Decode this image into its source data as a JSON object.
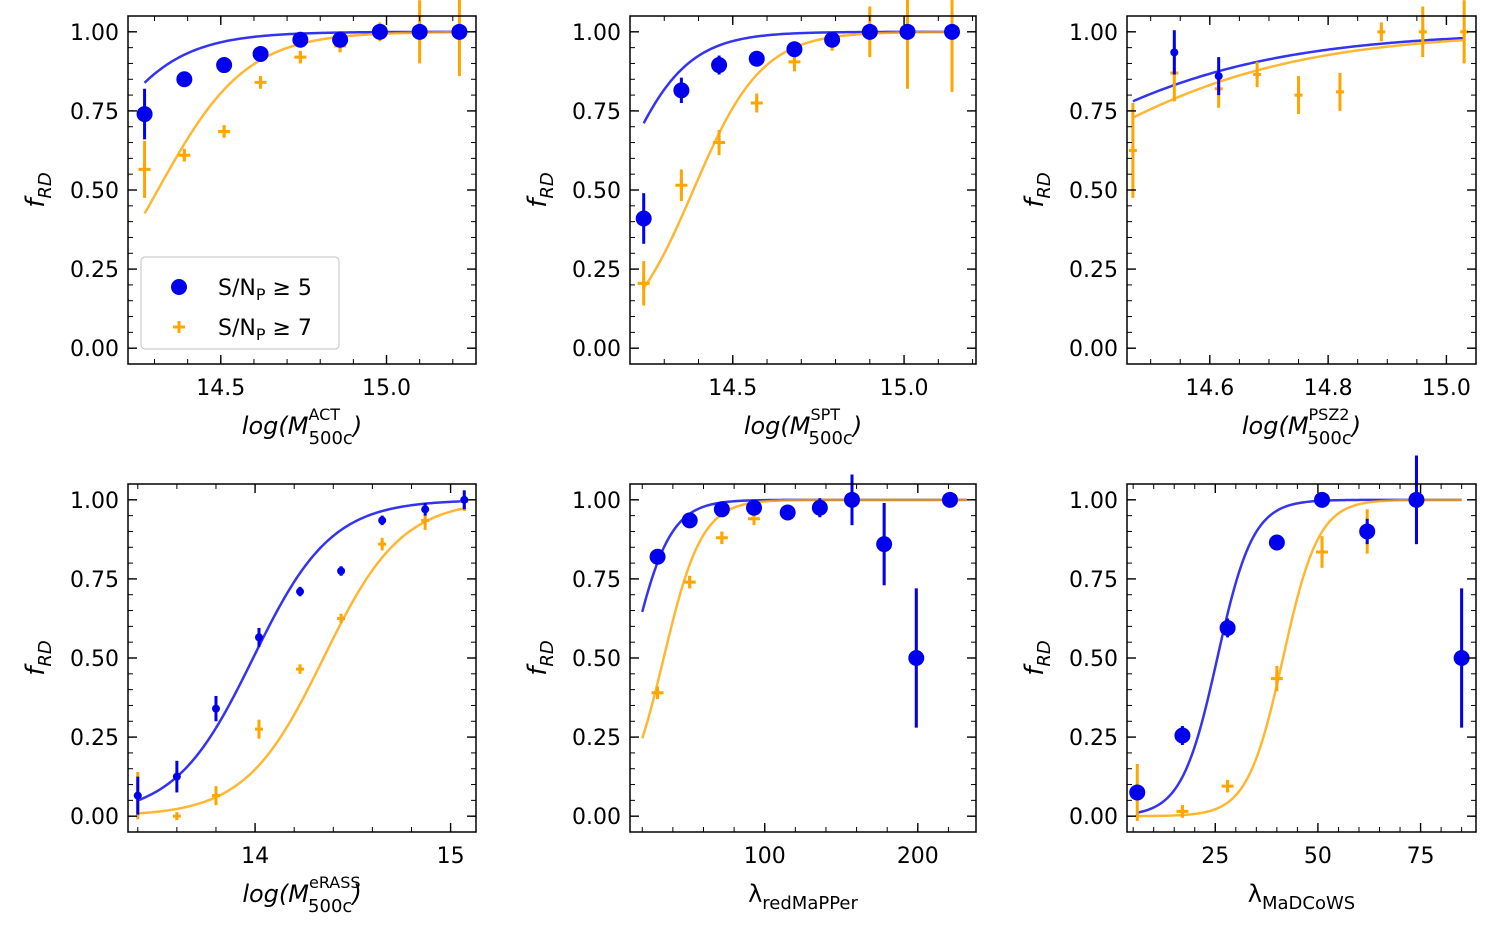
{
  "figure": {
    "legend": [
      {
        "label": "S/N",
        "sub": "P",
        "suffix": " ≥ 5",
        "marker": "circle",
        "color": "#0000ee"
      },
      {
        "label": "S/N",
        "sub": "P",
        "suffix": " ≥ 7",
        "marker": "plus",
        "color": "#ffa500"
      }
    ]
  },
  "chart_data": [
    {
      "type": "scatter",
      "title": "",
      "ylabel": "f_RD",
      "xlabel": {
        "main": "log(M",
        "sub": "500c",
        "sup": "ACT",
        "close": ")",
        "italic": true
      },
      "xlim": [
        14.22,
        15.27
      ],
      "ylim": [
        -0.05,
        1.05
      ],
      "xticks": [
        14.5,
        15.0
      ],
      "xtick_labels": [
        "14.5",
        "15.0"
      ],
      "yticks": [
        0.0,
        0.25,
        0.5,
        0.75,
        1.0
      ],
      "ytick_labels": [
        "0.00",
        "0.25",
        "0.50",
        "0.75",
        "1.00"
      ],
      "xminor": 0.1,
      "legend": true,
      "series": [
        {
          "name": "S/N_P ≥ 5",
          "color": "#0000ee",
          "marker": "circle",
          "size": 8,
          "x": [
            14.27,
            14.39,
            14.51,
            14.62,
            14.74,
            14.86,
            14.98,
            15.1,
            15.22
          ],
          "y": [
            0.74,
            0.85,
            0.895,
            0.93,
            0.975,
            0.975,
            1.0,
            1.0,
            1.0
          ],
          "err": [
            0.08,
            0.02,
            0.02,
            0.015,
            0.015,
            0.015,
            0.015,
            0.0,
            0.0
          ],
          "fit": {
            "type": "logistic",
            "x0": 14.05,
            "k": 7.5,
            "from": 14.27,
            "to": 15.22
          }
        },
        {
          "name": "S/N_P ≥ 7",
          "color": "#ffa500",
          "marker": "plus",
          "size": 6,
          "x": [
            14.27,
            14.39,
            14.51,
            14.62,
            14.74,
            14.86,
            14.98,
            15.1,
            15.22
          ],
          "y": [
            0.565,
            0.61,
            0.685,
            0.84,
            0.92,
            0.955,
            1.0,
            1.0,
            1.0
          ],
          "err": [
            0.09,
            0.02,
            0.02,
            0.02,
            0.02,
            0.02,
            0.03,
            0.1,
            0.14
          ],
          "fit": {
            "type": "logistic",
            "x0": 14.31,
            "k": 7.5,
            "from": 14.27,
            "to": 15.22
          }
        }
      ]
    },
    {
      "type": "scatter",
      "title": "",
      "ylabel": "f_RD",
      "xlabel": {
        "main": "log(M",
        "sub": "500c",
        "sup": "SPT",
        "close": ")",
        "italic": true
      },
      "xlim": [
        14.2,
        15.21
      ],
      "ylim": [
        -0.05,
        1.05
      ],
      "xticks": [
        14.5,
        15.0
      ],
      "xtick_labels": [
        "14.5",
        "15.0"
      ],
      "yticks": [
        0.0,
        0.25,
        0.5,
        0.75,
        1.0
      ],
      "ytick_labels": [
        "0.00",
        "0.25",
        "0.50",
        "0.75",
        "1.00"
      ],
      "xminor": 0.1,
      "legend": false,
      "series": [
        {
          "name": "S/N_P ≥ 5",
          "color": "#0000ee",
          "marker": "circle",
          "size": 8,
          "x": [
            14.24,
            14.35,
            14.46,
            14.57,
            14.68,
            14.79,
            14.9,
            15.01,
            15.14
          ],
          "y": [
            0.41,
            0.815,
            0.895,
            0.915,
            0.945,
            0.975,
            1.0,
            1.0,
            1.0
          ],
          "err": [
            0.08,
            0.04,
            0.03,
            0.02,
            0.02,
            0.02,
            0.02,
            0.0,
            0.0
          ],
          "fit": {
            "type": "logistic",
            "x0": 14.15,
            "k": 10,
            "from": 14.24,
            "to": 15.14
          }
        },
        {
          "name": "S/N_P ≥ 7",
          "color": "#ffa500",
          "marker": "plus",
          "size": 6,
          "x": [
            14.24,
            14.35,
            14.46,
            14.57,
            14.68,
            14.79,
            14.9,
            15.01,
            15.14
          ],
          "y": [
            0.205,
            0.515,
            0.65,
            0.775,
            0.905,
            0.97,
            1.0,
            1.0,
            1.0
          ],
          "err": [
            0.07,
            0.05,
            0.04,
            0.03,
            0.03,
            0.03,
            0.08,
            0.18,
            0.19
          ],
          "fit": {
            "type": "logistic",
            "x0": 14.385,
            "k": 10,
            "from": 14.24,
            "to": 15.14
          }
        }
      ]
    },
    {
      "type": "scatter",
      "title": "",
      "ylabel": "f_RD",
      "xlabel": {
        "main": "log(M",
        "sub": "500c",
        "sup": "PSZ2",
        "close": ")",
        "italic": true
      },
      "xlim": [
        14.46,
        15.05
      ],
      "ylim": [
        -0.05,
        1.05
      ],
      "xticks": [
        14.6,
        14.8,
        15.0
      ],
      "xtick_labels": [
        "14.6",
        "14.8",
        "15.0"
      ],
      "yticks": [
        0.0,
        0.25,
        0.5,
        0.75,
        1.0
      ],
      "ytick_labels": [
        "0.00",
        "0.25",
        "0.50",
        "0.75",
        "1.00"
      ],
      "xminor": 0.05,
      "legend": false,
      "series": [
        {
          "name": "S/N_P ≥ 5",
          "color": "#0000ee",
          "marker": "circle",
          "size": 4,
          "x": [
            14.54,
            14.615
          ],
          "y": [
            0.935,
            0.86
          ],
          "err": [
            0.07,
            0.06
          ],
          "fit": {
            "type": "logistic",
            "x0": 14.2,
            "k": 4.7,
            "from": 14.47,
            "to": 15.03
          }
        },
        {
          "name": "S/N_P ≥ 7",
          "color": "#ffa500",
          "marker": "plus",
          "size": 4,
          "x": [
            14.47,
            14.54,
            14.615,
            14.68,
            14.75,
            14.82,
            14.89,
            14.96,
            15.03
          ],
          "y": [
            0.625,
            0.87,
            0.82,
            0.865,
            0.8,
            0.81,
            1.0,
            1.0,
            1.0
          ],
          "err": [
            0.15,
            0.09,
            0.06,
            0.04,
            0.06,
            0.06,
            0.03,
            0.08,
            0.1
          ],
          "fit": {
            "type": "logistic",
            "x0": 14.26,
            "k": 4.7,
            "from": 14.47,
            "to": 15.03
          }
        }
      ]
    },
    {
      "type": "scatter",
      "title": "",
      "ylabel": "f_RD",
      "xlabel": {
        "main": "log(M",
        "sub": "500c",
        "sup": "eRASS",
        "close": ")",
        "italic": true
      },
      "xlim": [
        13.35,
        15.13
      ],
      "ylim": [
        -0.05,
        1.05
      ],
      "xticks": [
        14.0,
        15.0
      ],
      "xtick_labels": [
        "14",
        "15"
      ],
      "yticks": [
        0.0,
        0.25,
        0.5,
        0.75,
        1.0
      ],
      "ytick_labels": [
        "0.00",
        "0.25",
        "0.50",
        "0.75",
        "1.00"
      ],
      "xminor": 0.2,
      "legend": false,
      "series": [
        {
          "name": "S/N_P ≥ 5",
          "color": "#0000ee",
          "marker": "circle",
          "size": 4,
          "x": [
            13.4,
            13.6,
            13.8,
            14.02,
            14.23,
            14.44,
            14.65,
            14.87,
            15.07
          ],
          "y": [
            0.065,
            0.125,
            0.34,
            0.565,
            0.71,
            0.775,
            0.935,
            0.97,
            1.0
          ],
          "err": [
            0.06,
            0.05,
            0.04,
            0.03,
            0.015,
            0.015,
            0.015,
            0.02,
            0.03
          ],
          "fit": {
            "type": "logistic",
            "x0": 13.99,
            "k": 5.0,
            "from": 13.4,
            "to": 15.07
          }
        },
        {
          "name": "S/N_P ≥ 7",
          "color": "#ffa500",
          "marker": "plus",
          "size": 4,
          "x": [
            13.4,
            13.6,
            13.8,
            14.02,
            14.23,
            14.44,
            14.65,
            14.87,
            15.07
          ],
          "y": [
            0.065,
            0.0,
            0.065,
            0.275,
            0.465,
            0.625,
            0.86,
            0.935,
            0.995
          ],
          "err": [
            0.075,
            0.01,
            0.03,
            0.03,
            0.015,
            0.015,
            0.02,
            0.03,
            0.03
          ],
          "fit": {
            "type": "logistic",
            "x0": 14.35,
            "k": 5.0,
            "from": 13.4,
            "to": 15.07
          }
        }
      ]
    },
    {
      "type": "scatter",
      "title": "",
      "ylabel": "f_RD",
      "xlabel": {
        "main": "λ",
        "sub": "redMaPPer",
        "sup": "",
        "close": "",
        "italic": false
      },
      "xlim": [
        12,
        238
      ],
      "ylim": [
        -0.05,
        1.05
      ],
      "xticks": [
        100,
        200
      ],
      "xtick_labels": [
        "100",
        "200"
      ],
      "yticks": [
        0.0,
        0.25,
        0.5,
        0.75,
        1.0
      ],
      "ytick_labels": [
        "0.00",
        "0.25",
        "0.50",
        "0.75",
        "1.00"
      ],
      "xminor": 20,
      "legend": false,
      "series": [
        {
          "name": "S/N_P ≥ 5",
          "color": "#0000ee",
          "marker": "circle",
          "size": 8,
          "x": [
            30,
            51,
            72,
            93,
            115,
            136,
            157,
            178,
            199,
            221
          ],
          "y": [
            0.82,
            0.935,
            0.97,
            0.975,
            0.96,
            0.975,
            1.0,
            0.86,
            0.5,
            1.0
          ],
          "err": [
            0.02,
            0.015,
            0.02,
            0.02,
            0.02,
            0.03,
            0.08,
            0.13,
            0.22,
            0.02
          ],
          "fit": {
            "type": "logistic",
            "x0": 12.5,
            "k": 0.08,
            "from": 20,
            "to": 232
          }
        },
        {
          "name": "S/N_P ≥ 7",
          "color": "#ffa500",
          "marker": "plus",
          "size": 6,
          "x": [
            30,
            51,
            72,
            93,
            115,
            136,
            157,
            178,
            199,
            221
          ],
          "y": [
            0.39,
            0.74,
            0.88,
            0.94,
            0.96,
            0.975,
            1.0,
            0.86,
            0.5,
            1.0
          ],
          "err": [
            0.02,
            0.02,
            0.02,
            0.02,
            0.02,
            0.03,
            0.08,
            0.13,
            0.22,
            0.02
          ],
          "fit": {
            "type": "logistic",
            "x0": 34,
            "k": 0.08,
            "from": 20,
            "to": 232
          }
        }
      ]
    },
    {
      "type": "scatter",
      "title": "",
      "ylabel": "f_RD",
      "xlabel": {
        "main": "λ",
        "sub": "MaDCoWS",
        "sup": "",
        "close": "",
        "italic": false
      },
      "xlim": [
        3.5,
        88.5
      ],
      "ylim": [
        -0.05,
        1.05
      ],
      "xticks": [
        25,
        50,
        75
      ],
      "xtick_labels": [
        "25",
        "50",
        "75"
      ],
      "yticks": [
        0.0,
        0.25,
        0.5,
        0.75,
        1.0
      ],
      "ytick_labels": [
        "0.00",
        "0.25",
        "0.50",
        "0.75",
        "1.00"
      ],
      "xminor": 5,
      "legend": false,
      "series": [
        {
          "name": "S/N_P ≥ 5",
          "color": "#0000ee",
          "marker": "circle",
          "size": 8,
          "x": [
            6,
            17,
            28,
            40,
            51,
            62,
            74,
            85
          ],
          "y": [
            0.075,
            0.255,
            0.595,
            0.865,
            1.0,
            0.9,
            1.0,
            0.5
          ],
          "err": [
            0.02,
            0.03,
            0.03,
            0.02,
            0.02,
            0.04,
            0.14,
            0.22
          ],
          "fit": {
            "type": "logistic",
            "x0": 25.5,
            "k": 0.23,
            "from": 6,
            "to": 85
          }
        },
        {
          "name": "S/N_P ≥ 7",
          "color": "#ffa500",
          "marker": "plus",
          "size": 6,
          "x": [
            6,
            17,
            28,
            40,
            51,
            62,
            74,
            85
          ],
          "y": [
            0.075,
            0.015,
            0.095,
            0.435,
            0.835,
            0.9,
            1.0,
            0.5
          ],
          "err": [
            0.09,
            0.02,
            0.02,
            0.04,
            0.05,
            0.07,
            0.14,
            0.22
          ],
          "fit": {
            "type": "logistic",
            "x0": 41.5,
            "k": 0.23,
            "from": 6,
            "to": 85
          }
        }
      ]
    }
  ]
}
